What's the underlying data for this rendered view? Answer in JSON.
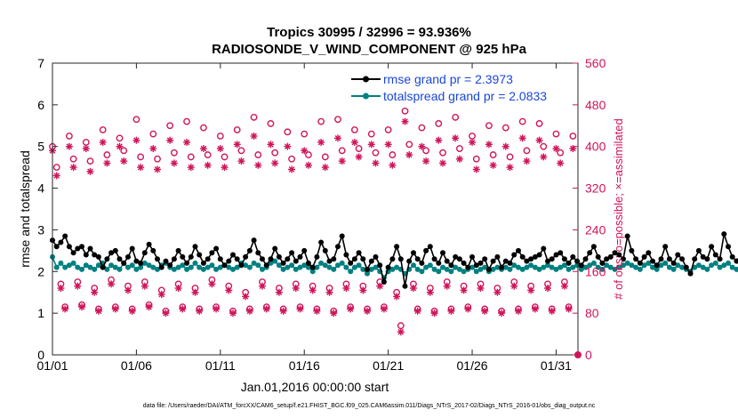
{
  "chart_data": {
    "type": "line",
    "title": "Tropics 30995 / 32996 = 93.936%",
    "subtitle": "RADIOSONDE_V_WIND_COMPONENT @ 925 hPa",
    "xlabel": "Jan.01,2016 00:00:00 start",
    "ylabel": "rmse and totalspread",
    "y2label": "# of obs: o=possible; ×=assimilated",
    "footer": "data file: /Users/raeder/DAI/ATM_forcXX/CAM6_setup/f.e21.FHIST_BGC.f09_025.CAM6assim.011/Diags_NTrS_2017-02/Diags_NTrS_2016-01/obs_diag_output.nc",
    "x_tick_labels": [
      "01/01",
      "01/06",
      "01/11",
      "01/16",
      "01/21",
      "01/26",
      "01/31"
    ],
    "x_tick_days": [
      0,
      5,
      10,
      15,
      20,
      25,
      30
    ],
    "xlim_days": [
      0,
      31.3
    ],
    "y_ticks": [
      0,
      1,
      2,
      3,
      4,
      5,
      6,
      7
    ],
    "ylim": [
      0,
      7
    ],
    "y2_ticks": [
      0,
      80,
      160,
      240,
      320,
      400,
      480,
      560
    ],
    "y2lim": [
      0,
      560
    ],
    "colors": {
      "rmse": "#000000",
      "totalspread": "#008080",
      "obs": "#d0145a",
      "legend_text": "#1a47d8"
    },
    "legend": [
      {
        "name": "rmse",
        "label": "rmse grand pr = 2.3973"
      },
      {
        "name": "totalspread",
        "label": "totalspread grand pr = 2.0833"
      }
    ],
    "x_start_day": 0,
    "x_step_day": 0.25,
    "series": [
      {
        "name": "rmse",
        "values": [
          2.75,
          2.6,
          2.7,
          2.85,
          2.6,
          2.45,
          2.55,
          2.6,
          2.4,
          2.55,
          2.4,
          2.35,
          2.1,
          2.3,
          2.45,
          2.5,
          2.3,
          2.2,
          2.35,
          2.55,
          2.25,
          2.2,
          2.45,
          2.65,
          2.5,
          2.3,
          2.1,
          2.25,
          2.15,
          2.3,
          2.5,
          2.35,
          2.2,
          2.35,
          2.6,
          2.4,
          2.2,
          2.3,
          2.45,
          2.55,
          2.3,
          2.15,
          2.25,
          2.4,
          2.3,
          2.15,
          2.35,
          2.5,
          2.75,
          2.45,
          2.3,
          2.15,
          2.3,
          2.55,
          2.35,
          2.2,
          2.3,
          2.45,
          2.25,
          2.35,
          2.5,
          2.2,
          2.1,
          2.35,
          2.7,
          2.5,
          2.25,
          2.3,
          2.6,
          2.85,
          2.4,
          2.2,
          2.3,
          2.45,
          2.3,
          2.05,
          2.25,
          2.35,
          2.15,
          1.75,
          2.1,
          2.3,
          2.6,
          2.3,
          1.65,
          2.25,
          2.45,
          2.3,
          2.2,
          2.5,
          2.6,
          2.3,
          2.2,
          2.45,
          2.25,
          2.15,
          2.35,
          2.3,
          2.2,
          2.1,
          2.35,
          2.15,
          2.2,
          2.3,
          2.05,
          2.25,
          2.35,
          2.1,
          2.25,
          2.2,
          2.4,
          2.5,
          2.35,
          2.25,
          2.3,
          2.35,
          2.4,
          2.55,
          2.25,
          2.3,
          2.4,
          2.45,
          2.3,
          2.2,
          2.35,
          2.25,
          2.15,
          2.3,
          2.45,
          2.6,
          2.35,
          2.2,
          2.3,
          2.35,
          2.45,
          2.4,
          2.3,
          2.85,
          2.5,
          2.3,
          2.2,
          2.35,
          2.45,
          2.25,
          2.15,
          2.3,
          2.6,
          2.3,
          2.2,
          2.4,
          2.3,
          2.1,
          1.95,
          2.3,
          2.5,
          2.35,
          2.3,
          2.6,
          2.4,
          2.3,
          2.9,
          2.6,
          2.35,
          2.25,
          2.4,
          2.5,
          2.3,
          2.35,
          2.55,
          2.6,
          2.4,
          2.3,
          2.5,
          2.65,
          2.35,
          2.3,
          2.45,
          2.55,
          2.4,
          2.3,
          2.3,
          2.45,
          2.35,
          2.2,
          2.35,
          2.5,
          2.4,
          2.25,
          2.3,
          2.45,
          2.55,
          2.35,
          2.2,
          2.3,
          2.45,
          2.55,
          2.4,
          2.2,
          2.35,
          2.5,
          2.3,
          2.2,
          2.4,
          2.55,
          2.4,
          2.3,
          2.6,
          2.7,
          2.5,
          2.4,
          2.5,
          2.6,
          2.7,
          2.55,
          2.4,
          2.5,
          2.6,
          2.5,
          2.3,
          2.55,
          2.65,
          2.4,
          2.3,
          2.5,
          2.7,
          2.75,
          2.6,
          2.4,
          2.5,
          2.6,
          2.8,
          2.55,
          2.4,
          2.3,
          2.55,
          2.6,
          2.95,
          2.75,
          2.55,
          2.4,
          2.7,
          2.9,
          3.0
        ]
      },
      {
        "name": "totalspread",
        "values": [
          2.35,
          2.1,
          2.2,
          2.1,
          2.15,
          2.2,
          2.1,
          2.05,
          2.15,
          2.1,
          2.05,
          2.15,
          2.2,
          2.05,
          2.15,
          2.1,
          2.05,
          2.2,
          2.1,
          2.15,
          2.05,
          2.1,
          2.2,
          2.15,
          2.1,
          2.05,
          2.15,
          2.2,
          2.1,
          2.05,
          2.1,
          2.15,
          2.05,
          2.1,
          2.2,
          2.1,
          2.05,
          2.1,
          2.15,
          2.05,
          2.1,
          2.15,
          2.1,
          2.05,
          2.1,
          2.2,
          2.15,
          2.1,
          2.2,
          2.15,
          2.05,
          2.1,
          2.2,
          2.25,
          2.15,
          2.05,
          2.1,
          2.15,
          2.05,
          2.1,
          2.15,
          2.1,
          2.0,
          2.1,
          2.2,
          2.15,
          2.1,
          2.05,
          2.15,
          2.2,
          2.1,
          2.0,
          2.1,
          2.15,
          2.05,
          1.95,
          2.05,
          2.1,
          2.0,
          1.85,
          2.0,
          2.05,
          2.1,
          2.05,
          1.95,
          2.05,
          2.15,
          2.05,
          2.0,
          2.1,
          2.15,
          2.05,
          2.0,
          2.1,
          2.05,
          2.0,
          2.1,
          2.05,
          2.0,
          2.05,
          2.1,
          2.0,
          2.05,
          2.1,
          2.0,
          2.05,
          2.1,
          2.05,
          2.1,
          2.05,
          2.15,
          2.1,
          2.05,
          2.1,
          2.15,
          2.1,
          2.05,
          2.1,
          2.15,
          2.1,
          2.05,
          2.1,
          2.15,
          2.05,
          2.1,
          2.15,
          2.05,
          2.1,
          2.15,
          2.2,
          2.1,
          2.05,
          2.15,
          2.1,
          2.05,
          2.1,
          2.15,
          2.2,
          2.15,
          2.1,
          2.05,
          2.15,
          2.2,
          2.1,
          2.05,
          2.15,
          2.2,
          2.1,
          2.05,
          2.15,
          2.1,
          2.05,
          2.0,
          2.1,
          2.15,
          2.1,
          2.05,
          2.15,
          2.2,
          2.1,
          2.15,
          2.2,
          2.1,
          2.05,
          2.15,
          2.2,
          2.1,
          2.05,
          2.15,
          2.25,
          2.2,
          2.1,
          2.15,
          2.25,
          2.2,
          2.1,
          2.15,
          2.2,
          2.15,
          2.05,
          2.1,
          2.2,
          2.15,
          2.05,
          2.1,
          2.2,
          2.15,
          2.05,
          2.1,
          2.15,
          2.2,
          2.1,
          2.05,
          2.1,
          2.2,
          2.25,
          2.15,
          2.05,
          2.1,
          2.2,
          2.1,
          2.05,
          2.15,
          2.2,
          2.15,
          2.1,
          2.2,
          2.25,
          2.15,
          2.1,
          2.15,
          2.2,
          2.25,
          2.2,
          2.1,
          2.15,
          2.2,
          2.15,
          2.05,
          2.15,
          2.2,
          2.1,
          2.05,
          2.15,
          2.2,
          2.25,
          2.2,
          2.1,
          2.15,
          2.2,
          2.25,
          2.15,
          2.1,
          2.05,
          2.15,
          2.2,
          2.25,
          2.2,
          2.15,
          2.1,
          2.15,
          2.15,
          2.15
        ]
      },
      {
        "name": "obs_possible_00Z",
        "y_axis": "right",
        "x": [
          0,
          1,
          2,
          3,
          4,
          5,
          6,
          7,
          8,
          9,
          10,
          11,
          12,
          13,
          14,
          15,
          16,
          17,
          18,
          19,
          20,
          21,
          22,
          23,
          24,
          25,
          26,
          27,
          28,
          29,
          30,
          31
        ],
        "values": [
          400,
          420,
          408,
          432,
          416,
          452,
          424,
          440,
          448,
          436,
          420,
          432,
          456,
          444,
          428,
          424,
          448,
          452,
          432,
          424,
          432,
          468,
          436,
          444,
          456,
          420,
          440,
          436,
          448,
          444,
          424,
          420
        ]
      },
      {
        "name": "obs_assimilated_00Z",
        "y_axis": "right",
        "x": [
          0,
          1,
          2,
          3,
          4,
          5,
          6,
          7,
          8,
          9,
          10,
          11,
          12,
          13,
          14,
          15,
          16,
          17,
          18,
          19,
          20,
          21,
          22,
          23,
          24,
          25,
          26,
          27,
          28,
          29,
          30,
          31
        ],
        "values": [
          392,
          400,
          396,
          408,
          400,
          412,
          396,
          412,
          408,
          396,
          396,
          404,
          420,
          404,
          400,
          392,
          408,
          416,
          408,
          404,
          404,
          448,
          400,
          412,
          416,
          408,
          404,
          400,
          416,
          412,
          396,
          396
        ]
      },
      {
        "name": "obs_possible_06Z",
        "y_axis": "right",
        "x": [
          0.25,
          1.25,
          2.25,
          3.25,
          4.25,
          5.25,
          6.25,
          7.25,
          8.25,
          9.25,
          10.25,
          11.25,
          12.25,
          13.25,
          14.25,
          15.25,
          16.25,
          17.25,
          18.25,
          19.25,
          20.25,
          21.25,
          22.25,
          23.25,
          24.25,
          25.25,
          26.25,
          27.25,
          28.25,
          29.25,
          30.25
        ],
        "values": [
          360,
          376,
          372,
          384,
          392,
          380,
          376,
          388,
          380,
          384,
          380,
          392,
          384,
          388,
          376,
          384,
          380,
          392,
          396,
          388,
          384,
          404,
          392,
          388,
          396,
          376,
          384,
          380,
          392,
          400,
          388
        ]
      },
      {
        "name": "obs_assimilated_06Z",
        "y_axis": "right",
        "x": [
          0.25,
          1.25,
          2.25,
          3.25,
          4.25,
          5.25,
          6.25,
          7.25,
          8.25,
          9.25,
          10.25,
          11.25,
          12.25,
          13.25,
          14.25,
          15.25,
          16.25,
          17.25,
          18.25,
          19.25,
          20.25,
          21.25,
          22.25,
          23.25,
          24.25,
          25.25,
          26.25,
          27.25,
          28.25,
          29.25,
          30.25
        ],
        "values": [
          344,
          360,
          352,
          368,
          372,
          360,
          356,
          368,
          360,
          364,
          360,
          372,
          364,
          368,
          356,
          364,
          360,
          372,
          380,
          368,
          364,
          384,
          372,
          368,
          376,
          356,
          364,
          360,
          372,
          380,
          368
        ]
      },
      {
        "name": "obs_possible_12Z",
        "y_axis": "right",
        "x": [
          0.5,
          1.5,
          2.5,
          3.5,
          4.5,
          5.5,
          6.5,
          7.5,
          8.5,
          9.5,
          10.5,
          11.5,
          12.5,
          13.5,
          14.5,
          15.5,
          16.5,
          17.5,
          18.5,
          19.5,
          20.5,
          21.5,
          22.5,
          23.5,
          24.5,
          25.5,
          26.5,
          27.5,
          28.5,
          29.5,
          30.5
        ],
        "values": [
          136,
          140,
          128,
          144,
          132,
          140,
          124,
          136,
          128,
          144,
          132,
          120,
          140,
          128,
          136,
          132,
          128,
          136,
          132,
          140,
          120,
          136,
          128,
          140,
          132,
          136,
          128,
          140,
          132,
          136,
          140
        ]
      },
      {
        "name": "obs_assimilated_12Z",
        "y_axis": "right",
        "x": [
          0.5,
          1.5,
          2.5,
          3.5,
          4.5,
          5.5,
          6.5,
          7.5,
          8.5,
          9.5,
          10.5,
          11.5,
          12.5,
          13.5,
          14.5,
          15.5,
          16.5,
          17.5,
          18.5,
          19.5,
          20.5,
          21.5,
          22.5,
          23.5,
          24.5,
          25.5,
          26.5,
          27.5,
          28.5,
          29.5,
          30.5
        ],
        "values": [
          128,
          132,
          120,
          136,
          124,
          132,
          116,
          128,
          120,
          136,
          124,
          112,
          132,
          120,
          128,
          124,
          120,
          128,
          124,
          132,
          112,
          128,
          120,
          132,
          124,
          128,
          120,
          132,
          124,
          128,
          132
        ]
      },
      {
        "name": "obs_possible_18Z",
        "y_axis": "right",
        "x": [
          0.75,
          1.75,
          2.75,
          3.75,
          4.75,
          5.75,
          6.75,
          7.75,
          8.75,
          9.75,
          10.75,
          11.75,
          12.75,
          13.75,
          14.75,
          15.75,
          16.75,
          17.75,
          18.75,
          19.75,
          20.75,
          21.75,
          22.75,
          23.75,
          24.75,
          25.75,
          26.75,
          27.75,
          28.75,
          29.75,
          30.75
        ],
        "values": [
          92,
          96,
          88,
          92,
          88,
          96,
          84,
          92,
          88,
          92,
          84,
          88,
          92,
          88,
          92,
          88,
          84,
          92,
          88,
          92,
          56,
          88,
          84,
          88,
          92,
          88,
          84,
          88,
          92,
          88,
          92
        ]
      },
      {
        "name": "obs_assimilated_18Z",
        "y_axis": "right",
        "x": [
          0.75,
          1.75,
          2.75,
          3.75,
          4.75,
          5.75,
          6.75,
          7.75,
          8.75,
          9.75,
          10.75,
          11.75,
          12.75,
          13.75,
          14.75,
          15.75,
          16.75,
          17.75,
          18.75,
          19.75,
          20.75,
          21.75,
          22.75,
          23.75,
          24.75,
          25.75,
          26.75,
          27.75,
          28.75,
          29.75,
          30.75
        ],
        "values": [
          88,
          92,
          84,
          88,
          84,
          92,
          80,
          88,
          84,
          88,
          80,
          84,
          88,
          84,
          88,
          84,
          80,
          88,
          84,
          88,
          44,
          84,
          80,
          84,
          88,
          84,
          80,
          84,
          88,
          84,
          88
        ]
      }
    ]
  }
}
